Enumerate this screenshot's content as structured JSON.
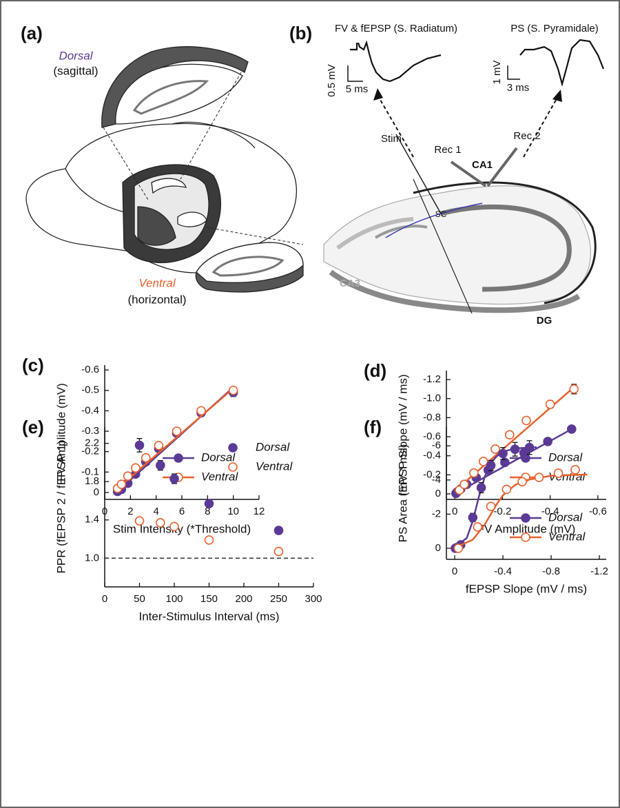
{
  "illustrations": {
    "panel_a": {
      "label": "(a)",
      "dorsal": "Dorsal",
      "dorsal_plane": "(sagittal)",
      "ventral": "Ventral",
      "ventral_plane": "(horizontal)"
    },
    "panel_b": {
      "label": "(b)",
      "trace1_title": "FV & fEPSP (S. Radiatum)",
      "trace2_title": "PS (S. Pyramidale)",
      "scale1_v": "0.5 mV",
      "scale1_t": "5 ms",
      "scale2_v": "1 mV",
      "scale2_t": "3 ms",
      "stim": "Stim",
      "rec1": "Rec 1",
      "rec2": "Rec 2",
      "ca1": "CA1",
      "sc": "SC",
      "ca3": "CA3",
      "dg": "DG"
    }
  },
  "chart_data": [
    {
      "type": "scatter",
      "label": "(c)",
      "x_label": "Stim Intensity (*Threshold)",
      "y_label": "FV Amplitude (mV)",
      "xlim": [
        0,
        12
      ],
      "xticks": [
        0,
        2,
        4,
        6,
        8,
        10,
        12
      ],
      "ylim": [
        0.034,
        -0.624
      ],
      "yticks": [
        0,
        -0.1,
        -0.2,
        -0.3,
        -0.4,
        -0.5,
        -0.6
      ],
      "legend": "lower right",
      "series": [
        {
          "name": "Dorsal",
          "color": "#5b3a96",
          "marker": "filled",
          "x": [
            1.0,
            1.3,
            1.8,
            2.4,
            3.2,
            4.2,
            5.6,
            7.5,
            10
          ],
          "values": [
            -0.005,
            -0.015,
            -0.045,
            -0.09,
            -0.15,
            -0.215,
            -0.29,
            -0.39,
            -0.49
          ],
          "errors": [
            0.005,
            0.005,
            0.005,
            0.006,
            0.007,
            0.008,
            0.01,
            0.012,
            0.02
          ],
          "fit": {
            "x": [
              1,
              10
            ],
            "y": [
              -0.005,
              -0.515
            ]
          }
        },
        {
          "name": "Ventral",
          "color": "#e8602c",
          "marker": "open",
          "x": [
            1.0,
            1.3,
            1.8,
            2.4,
            3.2,
            4.2,
            5.6,
            7.5,
            10
          ],
          "values": [
            -0.02,
            -0.04,
            -0.08,
            -0.12,
            -0.17,
            -0.23,
            -0.3,
            -0.4,
            -0.5
          ],
          "errors": [
            0.004,
            0.004,
            0.005,
            0.005,
            0.006,
            0.007,
            0.008,
            0.01,
            0.012
          ],
          "fit": {
            "x": [
              1,
              10
            ],
            "y": [
              -0.02,
              -0.51
            ]
          }
        }
      ]
    },
    {
      "type": "scatter",
      "label": "(d)",
      "x_label": "FV Amplitude (mV)",
      "y_label": "fEPSP Slope (mV / ms)",
      "xlim": [
        0.035,
        -0.635
      ],
      "xticks": [
        0,
        -0.2,
        -0.4,
        -0.6
      ],
      "ylim": [
        0.058,
        -1.294
      ],
      "yticks": [
        0,
        -0.2,
        -0.4,
        -0.6,
        -0.8,
        {
          "value": -1,
          "label": "-1.0"
        },
        -1.2
      ],
      "legend": "lower right",
      "series": [
        {
          "name": "Dorsal",
          "color": "#5b3a96",
          "marker": "filled",
          "x": [
            -0.005,
            -0.01,
            -0.025,
            -0.05,
            -0.09,
            -0.14,
            -0.21,
            -0.29,
            -0.39,
            -0.49
          ],
          "values": [
            -0.005,
            -0.02,
            -0.05,
            -0.1,
            -0.17,
            -0.25,
            -0.33,
            -0.43,
            -0.55,
            -0.68
          ],
          "errors": [
            0.005,
            0.005,
            0.006,
            0.007,
            0.008,
            0.01,
            0.01,
            0.012,
            0.015,
            0.02
          ],
          "fit": {
            "x": [
              0,
              -0.49
            ],
            "y": [
              0,
              -0.68
            ]
          }
        },
        {
          "name": "Ventral",
          "color": "#e8602c",
          "marker": "open",
          "x": [
            -0.02,
            -0.04,
            -0.08,
            -0.12,
            -0.17,
            -0.23,
            -0.3,
            -0.4,
            -0.5
          ],
          "values": [
            -0.04,
            -0.1,
            -0.22,
            -0.34,
            -0.47,
            -0.62,
            -0.77,
            -0.94,
            -1.1
          ],
          "errors": [
            0.006,
            0.008,
            0.01,
            0.012,
            0.015,
            0.02,
            0.03,
            0.04,
            0.05
          ],
          "fit": {
            "x": [
              0,
              -0.5
            ],
            "y": [
              -0.03,
              -1.12
            ]
          }
        }
      ]
    },
    {
      "type": "scatter",
      "label": "(e)",
      "x_label": "Inter-Stimulus Interval (ms)",
      "y_label": "PPR (fEPSP 2 / fEPSP 1)",
      "xlim": [
        0,
        300
      ],
      "xticks": [
        0,
        50,
        100,
        150,
        200,
        250,
        300
      ],
      "ylim": [
        0.7,
        2.37
      ],
      "yticks": [
        {
          "value": 1,
          "label": "1.0"
        },
        1.4,
        1.8,
        2.2
      ],
      "hline": 1,
      "legend": "upper right",
      "series": [
        {
          "name": "Dorsal",
          "color": "#5b3a96",
          "marker": "filled",
          "x": [
            50,
            80,
            100,
            150,
            250
          ],
          "values": [
            2.18,
            1.97,
            1.83,
            1.57,
            1.29
          ],
          "errors": [
            0.07,
            0.05,
            0.05,
            0.02,
            0.02
          ]
        },
        {
          "name": "Ventral",
          "color": "#e8602c",
          "marker": "open",
          "x": [
            50,
            80,
            100,
            150,
            250
          ],
          "values": [
            1.39,
            1.37,
            1.33,
            1.19,
            1.07
          ],
          "errors": [
            0.03,
            0.02,
            0.02,
            0.02,
            0.02
          ]
        }
      ]
    },
    {
      "type": "scatter",
      "label": "(f)",
      "x_label": "fEPSP Slope (mV / ms)",
      "y_label": "PS Area (mV * ms)",
      "xlim": [
        0.069,
        -1.257
      ],
      "xticks": [
        0,
        -0.4,
        -0.8,
        -1.2
      ],
      "ylim": [
        0.65,
        -7.1
      ],
      "yticks": [
        0,
        -2,
        -4,
        -6
      ],
      "legend": "lower right",
      "series": [
        {
          "name": "Dorsal",
          "color": "#5b3a96",
          "marker": "filled",
          "x": [
            -0.005,
            -0.02,
            -0.05,
            -0.15,
            -0.22,
            -0.3,
            -0.4,
            -0.5,
            -0.62
          ],
          "values": [
            0,
            -0.05,
            -0.2,
            -1.8,
            -3.55,
            -4.85,
            -5.55,
            -5.8,
            -5.9
          ],
          "errors": [
            0.05,
            0.05,
            0.1,
            0.25,
            0.3,
            0.3,
            0.35,
            0.4,
            0.4
          ],
          "fit": {
            "x": [
              0,
              -0.1,
              -0.15,
              -0.2,
              -0.25,
              -0.3,
              -0.35,
              -0.4,
              -0.5,
              -0.68
            ],
            "y": [
              -0.05,
              -0.6,
              -1.6,
              -3.0,
              -4.2,
              -5.0,
              -5.4,
              -5.65,
              -5.85,
              -5.92
            ]
          }
        },
        {
          "name": "Ventral",
          "color": "#e8602c",
          "marker": "open",
          "x": [
            -0.03,
            -0.19,
            -0.3,
            -0.43,
            -0.56,
            -0.7,
            -0.86,
            -1.0
          ],
          "values": [
            0,
            -1.25,
            -2.45,
            -3.45,
            -3.9,
            -4.15,
            -4.4,
            -4.6
          ],
          "errors": [
            0.05,
            0.1,
            0.15,
            0.1,
            0.1,
            0.1,
            0.15,
            0.15
          ],
          "fit": {
            "x": [
              0,
              -0.15,
              -0.25,
              -0.3,
              -0.35,
              -0.4,
              -0.5,
              -0.6,
              -0.8,
              -1.1
            ],
            "y": [
              -0.02,
              -0.5,
              -1.4,
              -2.0,
              -2.6,
              -3.1,
              -3.7,
              -4.0,
              -4.25,
              -4.32
            ]
          }
        }
      ]
    }
  ]
}
